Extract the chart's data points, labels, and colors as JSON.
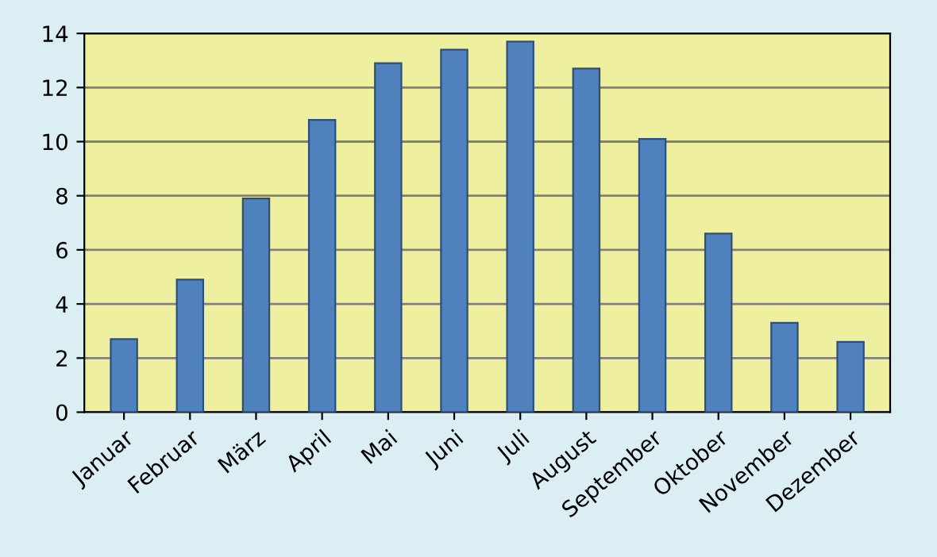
{
  "chart_data": {
    "type": "bar",
    "categories": [
      "Januar",
      "Februar",
      "März",
      "April",
      "Mai",
      "Juni",
      "Juli",
      "August",
      "September",
      "Oktober",
      "November",
      "Dezember"
    ],
    "values": [
      2.7,
      4.9,
      7.9,
      10.8,
      12.9,
      13.4,
      13.7,
      12.7,
      10.1,
      6.6,
      3.3,
      2.6
    ],
    "color": "#4f81bd",
    "ylim": [
      0,
      14
    ],
    "yticks": [
      0,
      2,
      4,
      6,
      8,
      10,
      12,
      14
    ],
    "grid": "y"
  }
}
